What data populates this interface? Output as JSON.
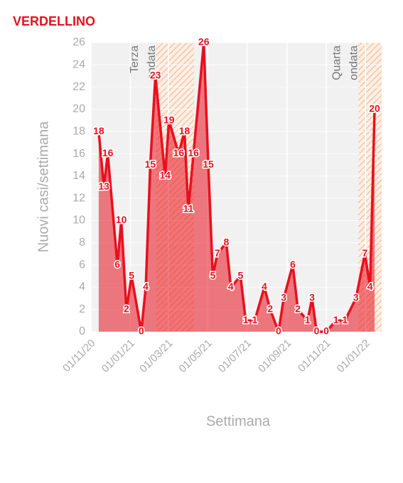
{
  "chart_data": {
    "type": "area",
    "title": "VERDELLINO",
    "x_label": "Settimana",
    "y_label": "Nuovi casi/settimana",
    "x": [
      "2020-11-13",
      "2020-11-21",
      "2020-11-27",
      "2020-12-12",
      "2020-12-18",
      "2020-12-26",
      "2021-01-03",
      "2021-01-18",
      "2021-01-25",
      "2021-02-01",
      "2021-02-09",
      "2021-02-24",
      "2021-03-02",
      "2021-03-17",
      "2021-03-26",
      "2021-04-01",
      "2021-04-09",
      "2021-04-25",
      "2021-05-02",
      "2021-05-09",
      "2021-05-16",
      "2021-05-30",
      "2021-06-06",
      "2021-06-21",
      "2021-06-29",
      "2021-07-13",
      "2021-07-28",
      "2021-08-06",
      "2021-08-19",
      "2021-08-27",
      "2021-09-10",
      "2021-09-18",
      "2021-10-03",
      "2021-10-10",
      "2021-10-17",
      "2021-11-01",
      "2021-11-16",
      "2021-11-30",
      "2021-12-17",
      "2021-12-31",
      "2022-01-08",
      "2022-01-15"
    ],
    "values": [
      18,
      13,
      16,
      6,
      10,
      2,
      5,
      0,
      4,
      15,
      23,
      14,
      19,
      16,
      18,
      11,
      16,
      26,
      15,
      5,
      7,
      8,
      4,
      5,
      1,
      1,
      4,
      2,
      0,
      3,
      6,
      2,
      1,
      3,
      0,
      0,
      1,
      1,
      3,
      7,
      4,
      20
    ],
    "color": "#e8101e",
    "xlim": [
      "2020-11-01",
      "2022-01-26"
    ],
    "xticks": [
      {
        "value": "2020-11-01",
        "label": "01/11/20"
      },
      {
        "value": "2021-01-01",
        "label": "01/01/21"
      },
      {
        "value": "2021-03-01",
        "label": "01/03/21"
      },
      {
        "value": "2021-05-01",
        "label": "01/05/21"
      },
      {
        "value": "2021-07-01",
        "label": "01/07/21"
      },
      {
        "value": "2021-09-01",
        "label": "01/09/21"
      },
      {
        "value": "2021-11-01",
        "label": "01/11/21"
      },
      {
        "value": "2022-01-01",
        "label": "01/01/22"
      }
    ],
    "ylim": [
      0,
      26
    ],
    "yticks": [
      0,
      2,
      4,
      6,
      8,
      10,
      12,
      14,
      16,
      18,
      20,
      22,
      24,
      26
    ],
    "grid": true,
    "bands": [
      {
        "start": "2021-02-10",
        "end": "2021-04-10",
        "label": [
          "Terza",
          "ondata"
        ]
      },
      {
        "start": "2021-12-21",
        "end": "2022-01-26",
        "label": [
          "Quarta",
          "ondata"
        ]
      }
    ]
  }
}
